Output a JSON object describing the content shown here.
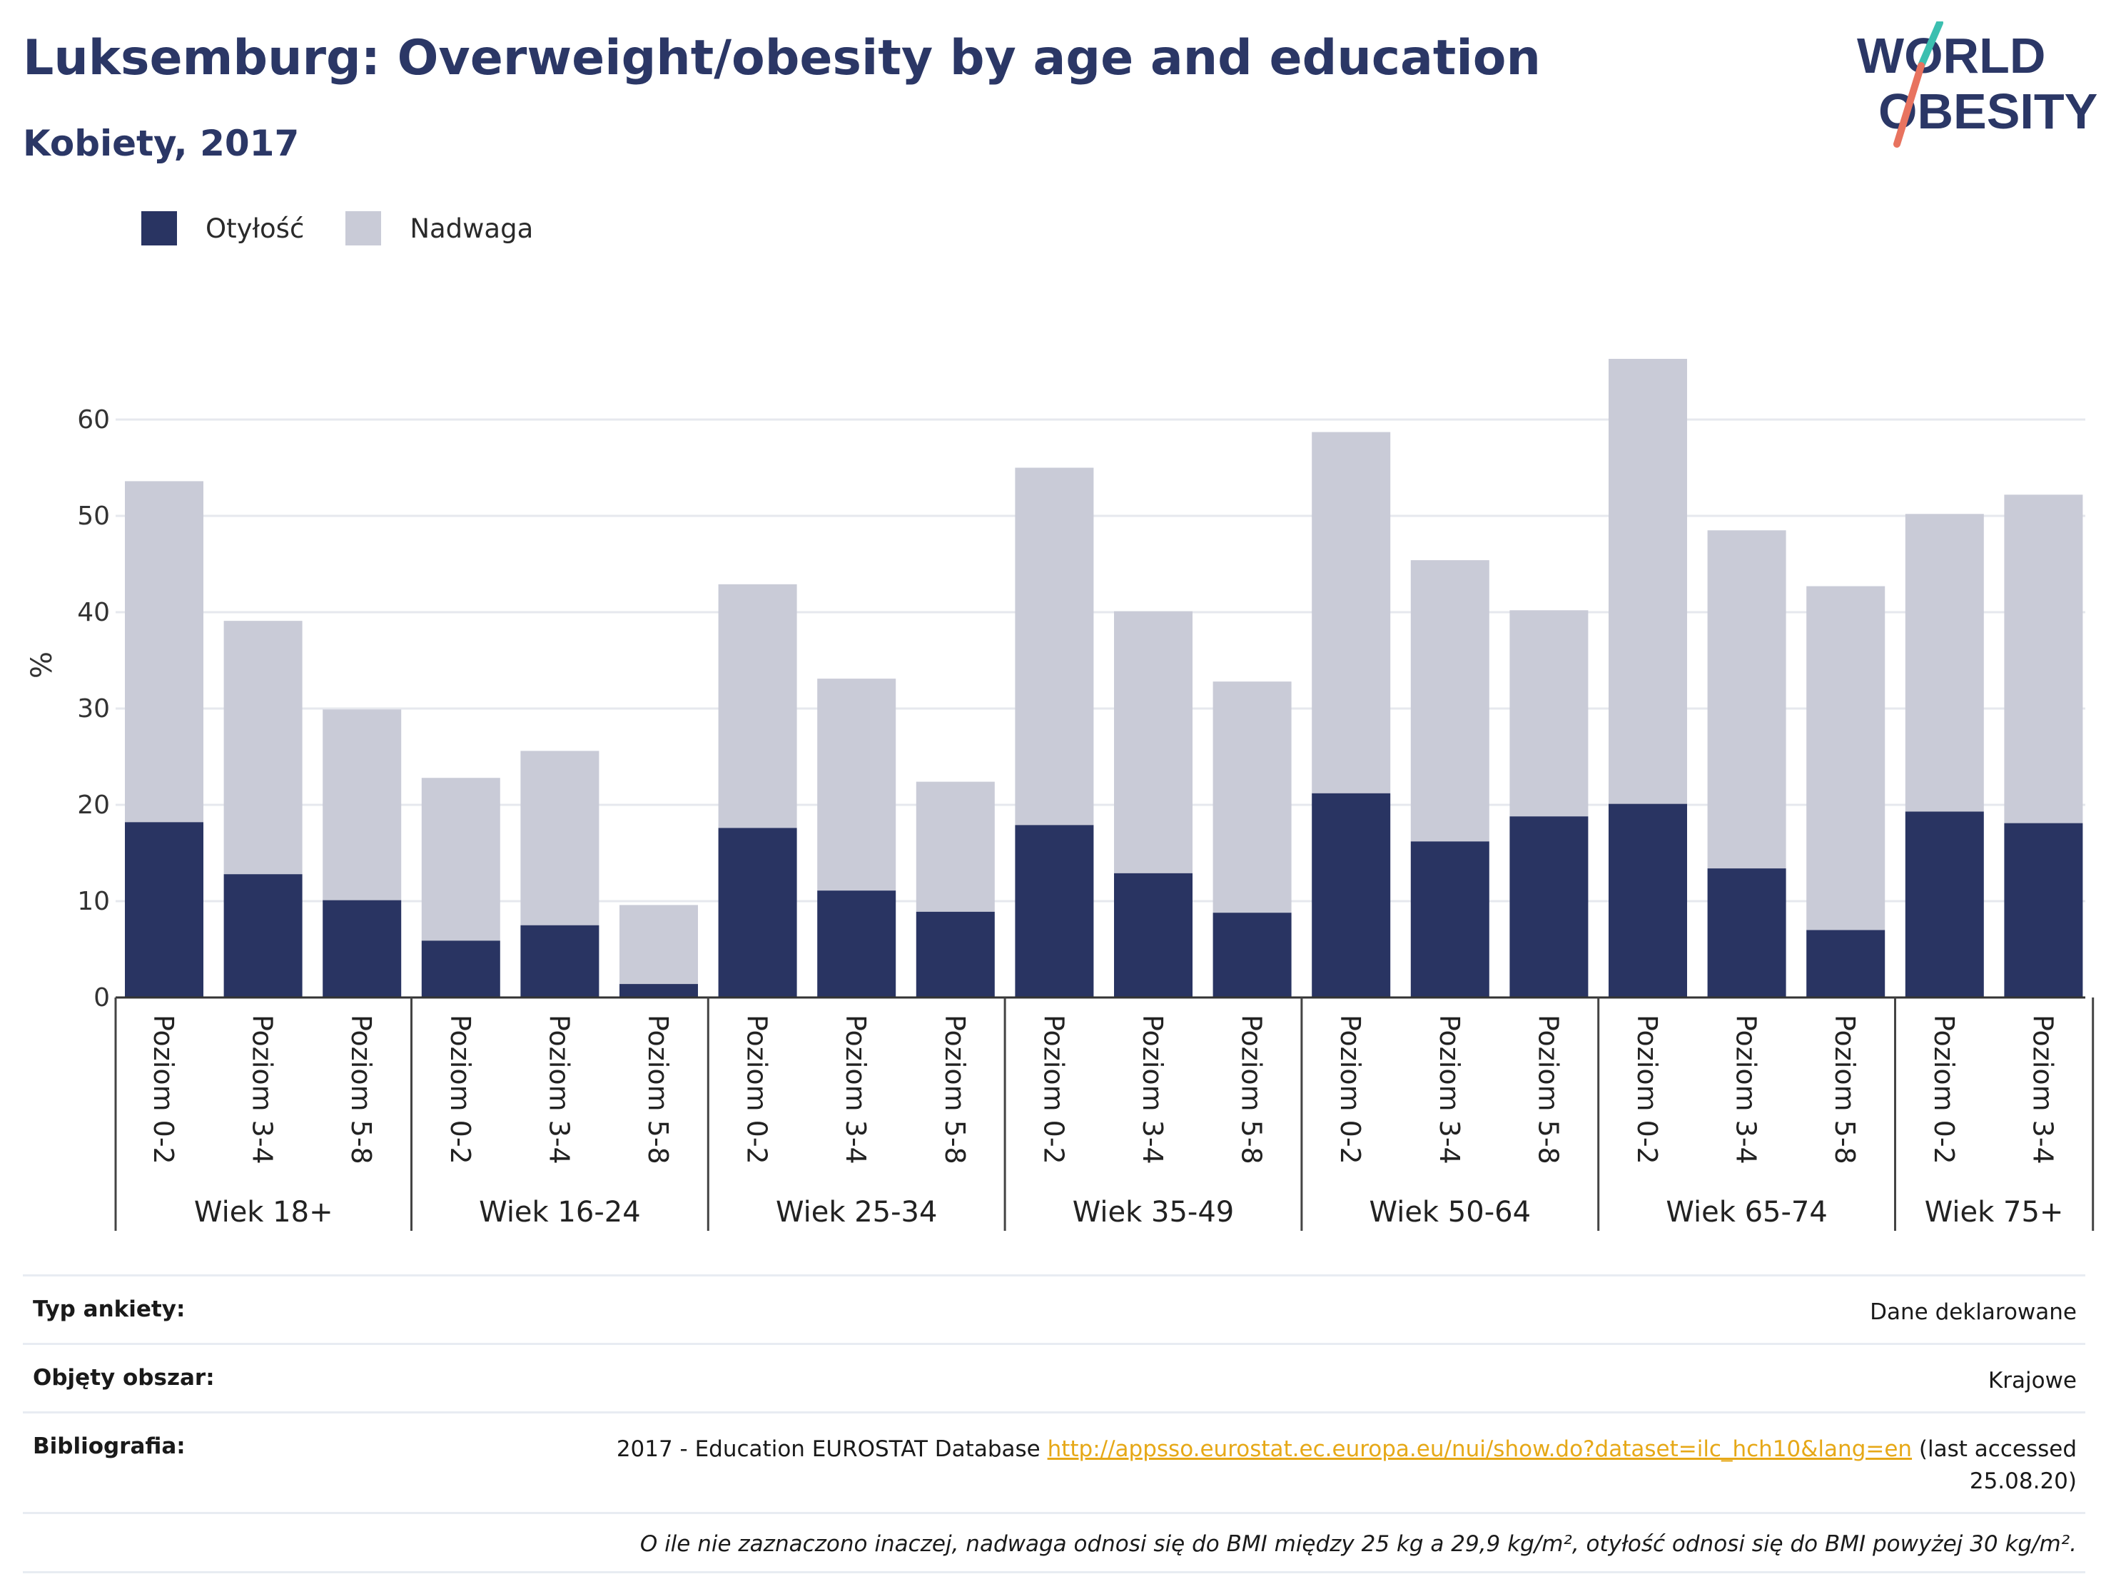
{
  "title": "Luksemburg: Overweight/obesity by age and education",
  "subtitle": "Kobiety, 2017",
  "logo": {
    "line1": "WORLD",
    "line2": "OBESITY"
  },
  "legend": {
    "obesity": "Otyłość",
    "overweight": "Nadwaga"
  },
  "colors": {
    "obesity": "#293462",
    "overweight": "#c9cbd7",
    "accent_teal": "#3cbfb0",
    "accent_coral": "#e8735f",
    "link": "#e6a817"
  },
  "chart_data": {
    "type": "bar",
    "stacked": true,
    "ylabel": "%",
    "ylim": [
      0,
      68
    ],
    "yticks": [
      0,
      10,
      20,
      30,
      40,
      50,
      60
    ],
    "grid": true,
    "legend_position": "top-left",
    "groups": [
      {
        "label": "Wiek 18+",
        "categories": [
          "Poziom 0-2",
          "Poziom 3-4",
          "Poziom 5-8"
        ]
      },
      {
        "label": "Wiek 16-24",
        "categories": [
          "Poziom 0-2",
          "Poziom 3-4",
          "Poziom 5-8"
        ]
      },
      {
        "label": "Wiek 25-34",
        "categories": [
          "Poziom 0-2",
          "Poziom 3-4",
          "Poziom 5-8"
        ]
      },
      {
        "label": "Wiek 35-49",
        "categories": [
          "Poziom 0-2",
          "Poziom 3-4",
          "Poziom 5-8"
        ]
      },
      {
        "label": "Wiek 50-64",
        "categories": [
          "Poziom 0-2",
          "Poziom 3-4",
          "Poziom 5-8"
        ]
      },
      {
        "label": "Wiek 65-74",
        "categories": [
          "Poziom 0-2",
          "Poziom 3-4",
          "Poziom 5-8"
        ]
      },
      {
        "label": "Wiek 75+",
        "categories": [
          "Poziom 0-2",
          "Poziom 3-4"
        ]
      }
    ],
    "series": [
      {
        "name": "Otyłość",
        "values": [
          18.2,
          12.8,
          10.1,
          5.9,
          7.5,
          1.4,
          17.6,
          11.1,
          8.9,
          17.9,
          12.9,
          8.8,
          21.2,
          16.2,
          18.8,
          20.1,
          13.4,
          7.0,
          19.3,
          18.1
        ]
      },
      {
        "name": "Nadwaga",
        "values": [
          35.4,
          26.3,
          19.8,
          16.9,
          18.1,
          8.2,
          25.3,
          22.0,
          13.5,
          37.1,
          27.2,
          24.0,
          37.5,
          29.2,
          21.4,
          46.2,
          35.1,
          35.7,
          30.9,
          34.1
        ]
      }
    ]
  },
  "info": {
    "survey_type_label": "Typ ankiety:",
    "survey_type_value": "Dane deklarowane",
    "area_label": "Objęty obszar:",
    "area_value": "Krajowe",
    "bibliography_label": "Bibliografia:",
    "bibliography_prefix": "2017 - Education EUROSTAT Database",
    "bibliography_link": "http://appsso.eurostat.ec.europa.eu/nui/show.do?dataset=ilc_hch10&lang=en",
    "bibliography_suffix": "(last accessed 25.08.20)",
    "note": "O ile nie zaznaczono inaczej, nadwaga odnosi się do BMI między 25 kg a 29,9 kg/m², otyłość odnosi się do BMI powyżej 30 kg/m²."
  }
}
